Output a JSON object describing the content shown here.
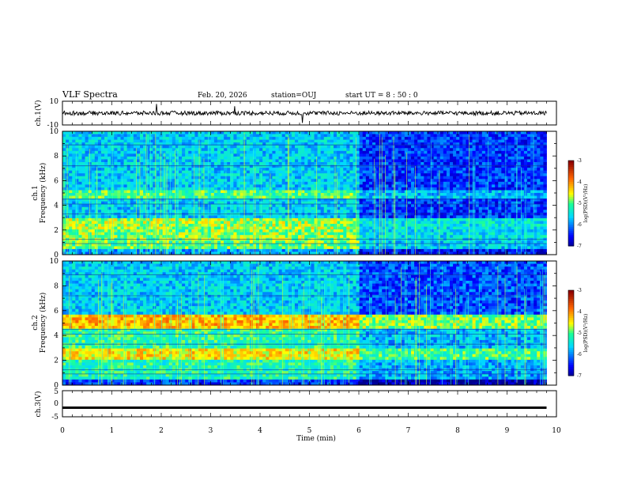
{
  "header": {
    "title": "VLF Spectra",
    "date": "Feb. 20, 2026",
    "station": "station=OUJ",
    "start": "start  UT =  8 : 50 : 0"
  },
  "chart_data": [
    {
      "type": "line",
      "panel": "ch1-waveform",
      "ylabel": "ch.1(V)",
      "xlim": [
        0,
        10
      ],
      "ylim": [
        -10,
        10
      ],
      "yticks": [
        "10",
        "-10"
      ],
      "baseline": 0,
      "notes": "continuous noisy trace centered near 0 V with sporadic spikes"
    },
    {
      "type": "heatmap",
      "panel": "ch1-spectrogram",
      "ylabel": "ch.1\nFrequency (kHz)",
      "xlim": [
        0,
        10
      ],
      "ylim": [
        0,
        10
      ],
      "yticks": [
        "0",
        "2",
        "4",
        "6",
        "8",
        "10"
      ],
      "data_end_min": 9.8,
      "colorbar": {
        "label": "log(PSD)(V²/Hz)",
        "range": [
          -7,
          -3
        ],
        "ticks": [
          "-3",
          "-4",
          "-5",
          "-6",
          "-7"
        ]
      },
      "bands": [
        {
          "from_khz": 0.0,
          "to_khz": 0.4,
          "level": -5.8
        },
        {
          "from_khz": 0.4,
          "to_khz": 1.2,
          "level": -4.9
        },
        {
          "from_khz": 1.2,
          "to_khz": 2.0,
          "level": -4.8
        },
        {
          "from_khz": 2.0,
          "to_khz": 3.0,
          "level": -4.7
        },
        {
          "from_khz": 3.0,
          "to_khz": 4.6,
          "level": -5.6
        },
        {
          "from_khz": 4.6,
          "to_khz": 5.2,
          "level": -5.0
        },
        {
          "from_khz": 5.2,
          "to_khz": 10.0,
          "level": -5.6
        }
      ],
      "change_at_min": 6.0,
      "after_change_offset": -0.7
    },
    {
      "type": "heatmap",
      "panel": "ch2-spectrogram",
      "ylabel": "ch.2\nFrequency (kHz)",
      "xlim": [
        0,
        10
      ],
      "ylim": [
        0,
        10
      ],
      "yticks": [
        "0",
        "2",
        "4",
        "6",
        "8",
        "10"
      ],
      "data_end_min": 9.8,
      "colorbar": {
        "label": "log(PSD)(V²/Hz)",
        "range": [
          -7,
          -3
        ],
        "ticks": [
          "-3",
          "-4",
          "-5",
          "-6",
          "-7"
        ]
      },
      "bands": [
        {
          "from_khz": 0.0,
          "to_khz": 0.5,
          "level": -6.3
        },
        {
          "from_khz": 0.5,
          "to_khz": 2.0,
          "level": -5.2
        },
        {
          "from_khz": 2.0,
          "to_khz": 3.0,
          "level": -4.4
        },
        {
          "from_khz": 3.0,
          "to_khz": 4.6,
          "level": -5.1
        },
        {
          "from_khz": 4.6,
          "to_khz": 5.6,
          "level": -4.2
        },
        {
          "from_khz": 5.6,
          "to_khz": 10.0,
          "level": -5.6
        }
      ],
      "change_at_min": 6.0,
      "after_change_offset": -0.6
    },
    {
      "type": "line",
      "panel": "ch3-waveform",
      "ylabel": "ch.3(V)",
      "xlim": [
        0,
        10
      ],
      "ylim": [
        -5,
        5
      ],
      "yticks": [
        "5",
        "0",
        "-5"
      ],
      "baseline": -1.5,
      "notes": "flat thick trace"
    }
  ],
  "xaxis": {
    "label": "Time  (min)",
    "ticks": [
      "0",
      "1",
      "2",
      "3",
      "4",
      "5",
      "6",
      "7",
      "8",
      "9",
      "10"
    ]
  }
}
